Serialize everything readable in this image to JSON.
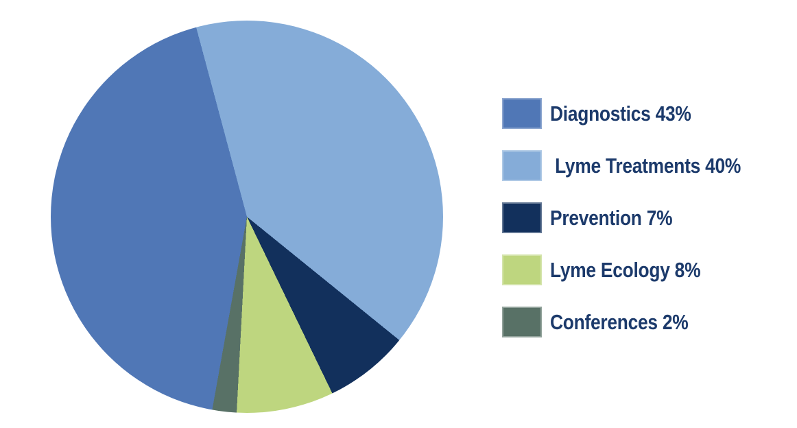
{
  "chart_data": {
    "type": "pie",
    "title": "",
    "slices": [
      {
        "label": "Diagnostics",
        "value": 43,
        "color": "#5077B6",
        "legend_label": "Diagnostics 43%"
      },
      {
        "label": "Lyme Treatments",
        "value": 40,
        "color": "#85ACD8",
        "legend_label": " Lyme Treatments 40%"
      },
      {
        "label": "Prevention",
        "value": 7,
        "color": "#12305C",
        "legend_label": "Prevention 7%"
      },
      {
        "label": "Lyme Ecology",
        "value": 8,
        "color": "#BED67F",
        "legend_label": "Lyme Ecology 8%"
      },
      {
        "label": "Conferences",
        "value": 2,
        "color": "#587166",
        "legend_label": "Conferences 2%"
      }
    ],
    "rotation_deg": 190.2,
    "direction": "clockwise",
    "legend_position": "right",
    "background": "#FFFFFF",
    "legend_text_color": "#1C3A6B"
  }
}
